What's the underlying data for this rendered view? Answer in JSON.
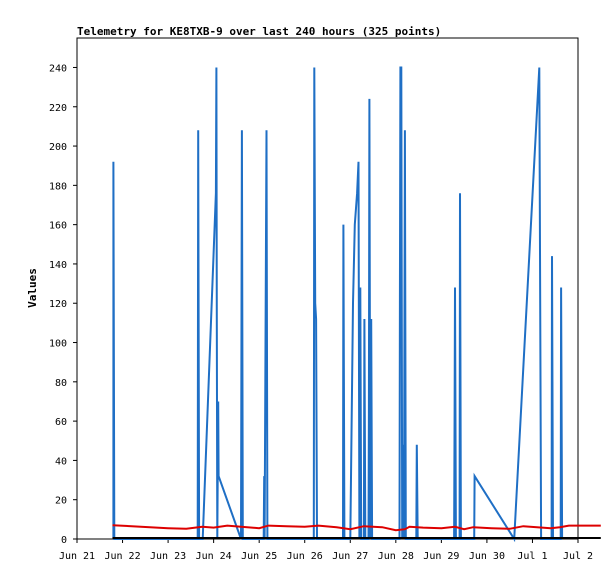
{
  "chart_data": {
    "type": "line",
    "title": "Telemetry for KE8TXB-9 over last 240 hours (325 points)",
    "xlabel": "",
    "ylabel": "Values",
    "ylim": [
      0,
      255
    ],
    "xlim": [
      0,
      11
    ],
    "x_tick_labels": [
      "Jun 21",
      "Jun 22",
      "Jun 23",
      "Jun 24",
      "Jun 25",
      "Jun 26",
      "Jun 27",
      "Jun 28",
      "Jun 29",
      "Jun 30",
      "Jul 1",
      "Jul 2"
    ],
    "y_ticks": [
      0,
      20,
      40,
      60,
      80,
      100,
      120,
      140,
      160,
      180,
      200,
      220,
      240
    ],
    "grid": false,
    "legend": "none",
    "series": [
      {
        "color": "#1f6fc5",
        "points": [
          [
            0.8,
            0
          ],
          [
            0.8,
            192
          ],
          [
            0.82,
            0
          ],
          [
            2.65,
            0
          ],
          [
            2.66,
            208
          ],
          [
            2.68,
            0
          ],
          [
            2.76,
            0
          ],
          [
            3.05,
            176
          ],
          [
            3.06,
            240
          ],
          [
            3.07,
            112
          ],
          [
            3.08,
            0
          ],
          [
            3.1,
            70
          ],
          [
            3.11,
            32
          ],
          [
            3.6,
            0
          ],
          [
            3.62,
            208
          ],
          [
            3.64,
            0
          ],
          [
            4.1,
            0
          ],
          [
            4.11,
            32
          ],
          [
            4.12,
            0
          ],
          [
            4.16,
            208
          ],
          [
            4.18,
            0
          ],
          [
            5.2,
            0
          ],
          [
            5.21,
            240
          ],
          [
            5.23,
            120
          ],
          [
            5.25,
            112
          ],
          [
            5.27,
            0
          ],
          [
            5.84,
            0
          ],
          [
            5.85,
            160
          ],
          [
            5.87,
            0
          ],
          [
            6.0,
            0
          ],
          [
            6.06,
            120
          ],
          [
            6.1,
            160
          ],
          [
            6.15,
            176
          ],
          [
            6.18,
            192
          ],
          [
            6.2,
            0
          ],
          [
            6.22,
            128
          ],
          [
            6.24,
            0
          ],
          [
            6.3,
            0
          ],
          [
            6.31,
            112
          ],
          [
            6.33,
            0
          ],
          [
            6.4,
            0
          ],
          [
            6.41,
            64
          ],
          [
            6.42,
            224
          ],
          [
            6.44,
            0
          ],
          [
            6.46,
            112
          ],
          [
            6.48,
            0
          ],
          [
            7.08,
            0
          ],
          [
            7.09,
            120
          ],
          [
            7.1,
            240
          ],
          [
            7.12,
            240
          ],
          [
            7.14,
            0
          ],
          [
            7.16,
            48
          ],
          [
            7.18,
            0
          ],
          [
            7.2,
            208
          ],
          [
            7.22,
            0
          ],
          [
            7.45,
            0
          ],
          [
            7.46,
            48
          ],
          [
            7.48,
            0
          ],
          [
            8.28,
            0
          ],
          [
            8.29,
            64
          ],
          [
            8.3,
            128
          ],
          [
            8.32,
            0
          ],
          [
            8.4,
            0
          ],
          [
            8.41,
            176
          ],
          [
            8.43,
            0
          ],
          [
            8.72,
            0
          ],
          [
            8.73,
            32
          ],
          [
            9.6,
            0
          ],
          [
            9.6,
            0
          ],
          [
            10.15,
            240
          ],
          [
            10.17,
            120
          ],
          [
            10.19,
            0
          ],
          [
            10.42,
            0
          ],
          [
            10.43,
            144
          ],
          [
            10.45,
            0
          ],
          [
            10.62,
            0
          ],
          [
            10.63,
            128
          ],
          [
            10.65,
            0
          ]
        ]
      },
      {
        "color": "#dd0000",
        "points": [
          [
            0.78,
            7
          ],
          [
            1.2,
            6.5
          ],
          [
            1.6,
            6
          ],
          [
            2.0,
            5.5
          ],
          [
            2.4,
            5.2
          ],
          [
            2.75,
            6.2
          ],
          [
            3.0,
            5.8
          ],
          [
            3.3,
            6.8
          ],
          [
            3.6,
            6.2
          ],
          [
            4.0,
            5.5
          ],
          [
            4.2,
            6.8
          ],
          [
            4.6,
            6.5
          ],
          [
            5.0,
            6.2
          ],
          [
            5.3,
            6.8
          ],
          [
            5.7,
            6.0
          ],
          [
            6.0,
            5.0
          ],
          [
            6.3,
            6.5
          ],
          [
            6.7,
            6.0
          ],
          [
            7.0,
            4.5
          ],
          [
            7.2,
            5.0
          ],
          [
            7.3,
            6.2
          ],
          [
            7.6,
            5.8
          ],
          [
            8.0,
            5.5
          ],
          [
            8.3,
            6.2
          ],
          [
            8.5,
            5.0
          ],
          [
            8.7,
            6.0
          ],
          [
            9.1,
            5.5
          ],
          [
            9.5,
            5.2
          ],
          [
            9.8,
            6.5
          ],
          [
            10.1,
            6.0
          ],
          [
            10.4,
            5.5
          ],
          [
            10.6,
            6.0
          ],
          [
            10.8,
            6.8
          ],
          [
            11.5,
            6.8
          ]
        ]
      },
      {
        "color": "#000000",
        "points": [
          [
            0.78,
            0.5
          ],
          [
            11.5,
            0.5
          ]
        ]
      }
    ]
  }
}
